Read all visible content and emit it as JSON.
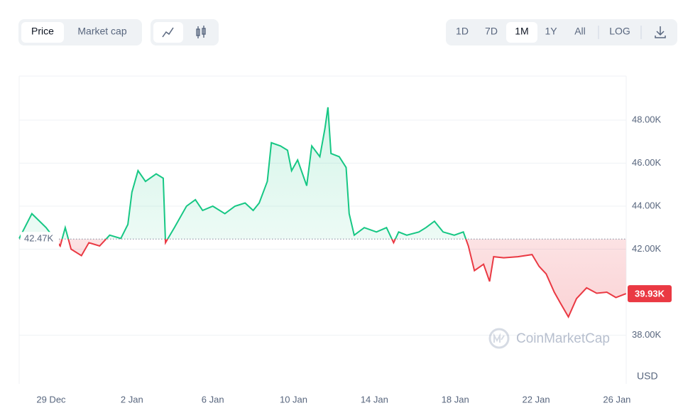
{
  "toolbar": {
    "tabs": [
      "Price",
      "Market cap"
    ],
    "active_tab": 0,
    "ranges": [
      "1D",
      "7D",
      "1M",
      "1Y",
      "All"
    ],
    "active_range": 2,
    "scale_button": "LOG"
  },
  "chart_data": {
    "type": "line",
    "x": [
      0.42,
      1.05,
      1.75,
      2.45,
      2.7,
      2.99,
      3.5,
      3.87,
      4.4,
      4.9,
      5.45,
      5.8,
      6.0,
      6.3,
      6.67,
      7.2,
      7.55,
      7.66,
      8.1,
      8.7,
      9.14,
      9.5,
      10.0,
      10.6,
      11.1,
      11.6,
      12.0,
      12.3,
      12.7,
      12.9,
      13.35,
      13.7,
      13.9,
      14.2,
      14.65,
      14.9,
      15.3,
      15.55,
      15.7,
      15.85,
      16.26,
      16.6,
      16.75,
      17.0,
      17.5,
      18.1,
      18.6,
      18.95,
      19.2,
      19.6,
      20.2,
      20.55,
      20.97,
      21.4,
      21.95,
      22.4,
      22.65,
      22.95,
      23.4,
      23.7,
      23.9,
      24.4,
      25.1,
      25.8,
      26.15,
      26.5,
      26.9,
      27.2,
      27.6,
      28.0,
      28.5,
      29.0,
      29.5,
      29.95,
      30.45
    ],
    "values": [
      42500,
      43650,
      43000,
      42150,
      43000,
      42000,
      41700,
      42300,
      42150,
      42650,
      42500,
      43150,
      44650,
      45650,
      45150,
      45500,
      45300,
      42300,
      43000,
      44000,
      44300,
      43800,
      44000,
      43650,
      44000,
      44150,
      43800,
      44150,
      45150,
      46950,
      46800,
      46600,
      45650,
      46150,
      44950,
      46800,
      46300,
      47600,
      48600,
      46450,
      46300,
      45800,
      43650,
      42650,
      43000,
      42800,
      43000,
      42300,
      42800,
      42650,
      42800,
      43000,
      43300,
      42800,
      42650,
      42800,
      42150,
      41000,
      41300,
      40500,
      41650,
      41600,
      41650,
      41750,
      41200,
      40850,
      40000,
      39500,
      38850,
      39700,
      40200,
      39950,
      40000,
      39750,
      39930
    ],
    "last_value": 39930,
    "last_value_label": "39.93K",
    "baseline": 42470,
    "baseline_label": "42.47K",
    "up_color": "#16c784",
    "down_color": "#ea3943",
    "xlim": [
      0.42,
      30.46
    ],
    "xticks": [
      {
        "value": 2,
        "label": "29 Dec"
      },
      {
        "value": 6,
        "label": "2 Jan"
      },
      {
        "value": 10,
        "label": "6 Jan"
      },
      {
        "value": 14,
        "label": "10 Jan"
      },
      {
        "value": 18,
        "label": "14 Jan"
      },
      {
        "value": 22,
        "label": "18 Jan"
      },
      {
        "value": 26,
        "label": "22 Jan"
      },
      {
        "value": 30,
        "label": "26 Jan"
      }
    ],
    "ylim": [
      35900,
      50050
    ],
    "yticks": [
      {
        "value": 38000,
        "label": "38.00K"
      },
      {
        "value": 42000,
        "label": "42.00K"
      },
      {
        "value": 44000,
        "label": "44.00K"
      },
      {
        "value": 46000,
        "label": "46.00K"
      },
      {
        "value": 48000,
        "label": "48.00K"
      }
    ],
    "grid": true,
    "currency": "USD",
    "watermark": "CoinMarketCap"
  }
}
